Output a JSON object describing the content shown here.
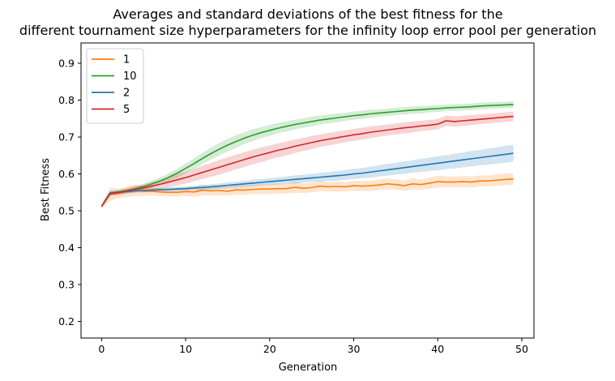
{
  "chart_data": {
    "type": "line",
    "title": "Averages and standard deviations of the best fitness for the\ndifferent tournament size hyperparameters for the infinity loop error pool per generation",
    "xlabel": "Generation",
    "ylabel": "Best Fitness",
    "xlim": [
      -2.45,
      51.45
    ],
    "ylim": [
      0.155,
      0.955
    ],
    "xticks": [
      0,
      10,
      20,
      30,
      40,
      50
    ],
    "yticks": [
      0.2,
      0.3,
      0.4,
      0.5,
      0.6,
      0.7,
      0.8,
      0.9
    ],
    "xtick_labels": [
      "0",
      "10",
      "20",
      "30",
      "40",
      "50"
    ],
    "ytick_labels": [
      "0.2",
      "0.3",
      "0.4",
      "0.5",
      "0.6",
      "0.7",
      "0.8",
      "0.9"
    ],
    "grid": false,
    "legend_position": "top-left",
    "x": [
      0,
      1,
      2,
      3,
      4,
      5,
      6,
      7,
      8,
      9,
      10,
      11,
      12,
      13,
      14,
      15,
      16,
      17,
      18,
      19,
      20,
      21,
      22,
      23,
      24,
      25,
      26,
      27,
      28,
      29,
      30,
      31,
      32,
      33,
      34,
      35,
      36,
      37,
      38,
      39,
      40,
      41,
      42,
      43,
      44,
      45,
      46,
      47,
      48,
      49
    ],
    "series": [
      {
        "name": "1",
        "color": "#ff7f0e",
        "mean": [
          0.512,
          0.545,
          0.547,
          0.552,
          0.556,
          0.553,
          0.553,
          0.551,
          0.55,
          0.55,
          0.552,
          0.551,
          0.556,
          0.554,
          0.555,
          0.553,
          0.557,
          0.556,
          0.558,
          0.559,
          0.559,
          0.56,
          0.56,
          0.564,
          0.561,
          0.563,
          0.567,
          0.565,
          0.566,
          0.565,
          0.568,
          0.567,
          0.568,
          0.57,
          0.573,
          0.571,
          0.568,
          0.573,
          0.571,
          0.575,
          0.579,
          0.578,
          0.578,
          0.579,
          0.578,
          0.581,
          0.581,
          0.583,
          0.585,
          0.586
        ],
        "std": [
          0.006,
          0.018,
          0.012,
          0.014,
          0.016,
          0.013,
          0.012,
          0.011,
          0.011,
          0.012,
          0.012,
          0.013,
          0.015,
          0.013,
          0.013,
          0.012,
          0.013,
          0.013,
          0.013,
          0.013,
          0.014,
          0.013,
          0.013,
          0.015,
          0.013,
          0.013,
          0.014,
          0.013,
          0.014,
          0.013,
          0.014,
          0.014,
          0.014,
          0.014,
          0.015,
          0.014,
          0.014,
          0.015,
          0.014,
          0.015,
          0.016,
          0.015,
          0.015,
          0.015,
          0.015,
          0.015,
          0.015,
          0.016,
          0.016,
          0.016
        ]
      },
      {
        "name": "10",
        "color": "#2ca02c",
        "mean": [
          0.512,
          0.548,
          0.551,
          0.555,
          0.56,
          0.566,
          0.573,
          0.581,
          0.591,
          0.602,
          0.615,
          0.628,
          0.642,
          0.655,
          0.667,
          0.678,
          0.688,
          0.697,
          0.705,
          0.712,
          0.718,
          0.724,
          0.729,
          0.734,
          0.738,
          0.742,
          0.746,
          0.749,
          0.752,
          0.755,
          0.758,
          0.76,
          0.763,
          0.765,
          0.767,
          0.769,
          0.771,
          0.773,
          0.774,
          0.776,
          0.777,
          0.779,
          0.78,
          0.781,
          0.782,
          0.784,
          0.785,
          0.786,
          0.787,
          0.788
        ],
        "std": [
          0.004,
          0.006,
          0.006,
          0.006,
          0.007,
          0.008,
          0.009,
          0.01,
          0.011,
          0.012,
          0.013,
          0.014,
          0.015,
          0.016,
          0.017,
          0.017,
          0.017,
          0.016,
          0.016,
          0.015,
          0.015,
          0.014,
          0.014,
          0.013,
          0.013,
          0.013,
          0.012,
          0.012,
          0.012,
          0.011,
          0.011,
          0.011,
          0.011,
          0.01,
          0.01,
          0.01,
          0.01,
          0.01,
          0.01,
          0.009,
          0.009,
          0.009,
          0.009,
          0.009,
          0.009,
          0.009,
          0.009,
          0.009,
          0.009,
          0.009
        ]
      },
      {
        "name": "2",
        "color": "#1f77b4",
        "mean": [
          0.512,
          0.548,
          0.55,
          0.552,
          0.554,
          0.555,
          0.556,
          0.557,
          0.558,
          0.559,
          0.56,
          0.562,
          0.563,
          0.565,
          0.567,
          0.569,
          0.571,
          0.573,
          0.575,
          0.577,
          0.579,
          0.581,
          0.583,
          0.585,
          0.587,
          0.589,
          0.591,
          0.593,
          0.595,
          0.597,
          0.6,
          0.602,
          0.605,
          0.608,
          0.611,
          0.614,
          0.617,
          0.62,
          0.623,
          0.626,
          0.629,
          0.632,
          0.635,
          0.638,
          0.641,
          0.644,
          0.647,
          0.65,
          0.653,
          0.656
        ],
        "std": [
          0.004,
          0.005,
          0.005,
          0.005,
          0.005,
          0.005,
          0.005,
          0.005,
          0.006,
          0.006,
          0.006,
          0.006,
          0.007,
          0.007,
          0.007,
          0.008,
          0.008,
          0.008,
          0.009,
          0.009,
          0.009,
          0.01,
          0.01,
          0.011,
          0.011,
          0.011,
          0.012,
          0.012,
          0.013,
          0.013,
          0.014,
          0.014,
          0.015,
          0.015,
          0.016,
          0.016,
          0.017,
          0.017,
          0.018,
          0.018,
          0.019,
          0.019,
          0.02,
          0.02,
          0.021,
          0.021,
          0.022,
          0.022,
          0.023,
          0.023
        ]
      },
      {
        "name": "5",
        "color": "#d62728",
        "mean": [
          0.512,
          0.546,
          0.549,
          0.554,
          0.558,
          0.562,
          0.567,
          0.572,
          0.578,
          0.584,
          0.59,
          0.597,
          0.604,
          0.611,
          0.618,
          0.625,
          0.632,
          0.639,
          0.646,
          0.652,
          0.658,
          0.664,
          0.669,
          0.675,
          0.68,
          0.685,
          0.69,
          0.694,
          0.698,
          0.702,
          0.706,
          0.709,
          0.713,
          0.716,
          0.719,
          0.722,
          0.725,
          0.727,
          0.73,
          0.732,
          0.735,
          0.744,
          0.742,
          0.744,
          0.746,
          0.748,
          0.75,
          0.752,
          0.754,
          0.756
        ],
        "std": [
          0.004,
          0.006,
          0.006,
          0.007,
          0.008,
          0.009,
          0.011,
          0.012,
          0.014,
          0.015,
          0.016,
          0.017,
          0.018,
          0.019,
          0.02,
          0.02,
          0.02,
          0.02,
          0.02,
          0.02,
          0.019,
          0.019,
          0.019,
          0.018,
          0.018,
          0.018,
          0.017,
          0.017,
          0.017,
          0.016,
          0.016,
          0.016,
          0.016,
          0.015,
          0.015,
          0.015,
          0.015,
          0.015,
          0.014,
          0.014,
          0.014,
          0.014,
          0.014,
          0.014,
          0.014,
          0.013,
          0.013,
          0.013,
          0.013,
          0.013
        ]
      }
    ]
  }
}
